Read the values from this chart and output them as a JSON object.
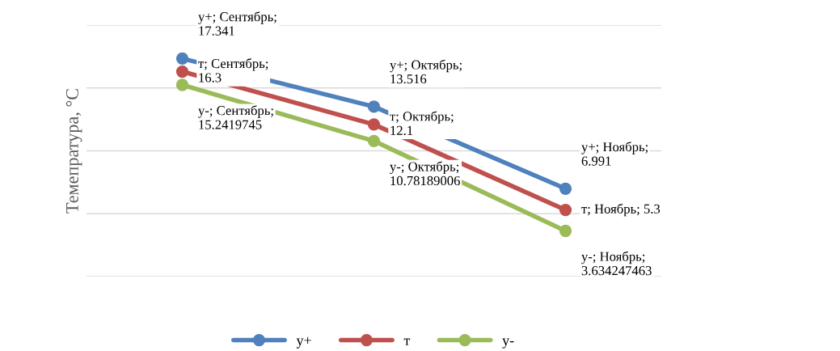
{
  "chart_data": {
    "type": "line",
    "ylabel": "Темепратура, °C",
    "categories": [
      null,
      null,
      null
    ],
    "series": [
      {
        "name": "y+",
        "color": "#4f81bd",
        "values": [
          17.341,
          13.516,
          6.991
        ],
        "value_labels": [
          "y+; Сентябрь;\n17.341",
          "y+; Октябрь;\n13.516",
          "y+; Ноябрь;\n6.991"
        ]
      },
      {
        "name": "т",
        "color": "#c0504d",
        "values": [
          16.3,
          12.1,
          5.3
        ],
        "value_labels": [
          "т; Сентябрь;\n16.3",
          "т; Октябрь;\n12.1",
          "т; Ноябрь; 5.3"
        ]
      },
      {
        "name": "y-",
        "color": "#9bbb59",
        "values": [
          15.2419745,
          10.78189006,
          3.634247463
        ],
        "value_labels": [
          "y-; Сентябрь;\n15.2419745",
          "y-; Октябрь;\n10.78189006",
          "y-; Ноябрь;\n3.634247463"
        ]
      }
    ],
    "ylim": [
      0,
      20
    ],
    "yticks": [
      {
        "value": 0,
        "label": null
      },
      {
        "value": 5,
        "label": null
      },
      {
        "value": 10,
        "label": null
      },
      {
        "value": 15,
        "label": null
      },
      {
        "value": 20,
        "label": null
      }
    ],
    "tick_labels": false,
    "grid": "y",
    "legend": "bottom",
    "marker": "circle",
    "line_style": "solid"
  }
}
